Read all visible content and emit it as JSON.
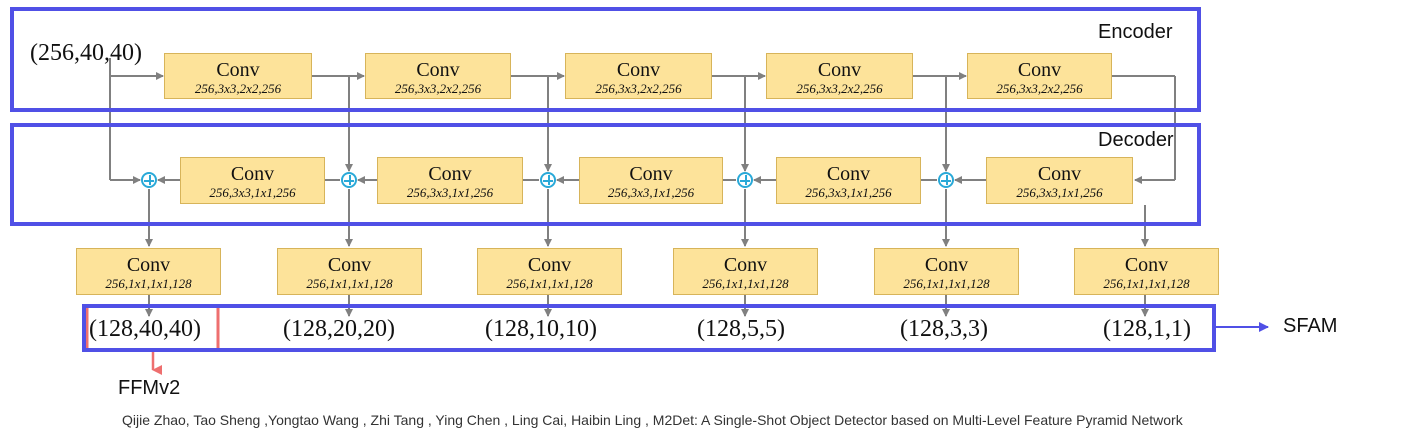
{
  "input_shape": "(256,40,40)",
  "sections": {
    "encoder": "Encoder",
    "decoder": "Decoder"
  },
  "encoder_blocks": [
    {
      "title": "Conv",
      "params": "256,3x3,2x2,256"
    },
    {
      "title": "Conv",
      "params": "256,3x3,2x2,256"
    },
    {
      "title": "Conv",
      "params": "256,3x3,2x2,256"
    },
    {
      "title": "Conv",
      "params": "256,3x3,2x2,256"
    },
    {
      "title": "Conv",
      "params": "256,3x3,2x2,256"
    }
  ],
  "decoder_blocks": [
    {
      "title": "Conv",
      "params": "256,3x3,1x1,256"
    },
    {
      "title": "Conv",
      "params": "256,3x3,1x1,256"
    },
    {
      "title": "Conv",
      "params": "256,3x3,1x1,256"
    },
    {
      "title": "Conv",
      "params": "256,3x3,1x1,256"
    },
    {
      "title": "Conv",
      "params": "256,3x3,1x1,256"
    }
  ],
  "output_blocks": [
    {
      "title": "Conv",
      "params": "256,1x1,1x1,128"
    },
    {
      "title": "Conv",
      "params": "256,1x1,1x1,128"
    },
    {
      "title": "Conv",
      "params": "256,1x1,1x1,128"
    },
    {
      "title": "Conv",
      "params": "256,1x1,1x1,128"
    },
    {
      "title": "Conv",
      "params": "256,1x1,1x1,128"
    },
    {
      "title": "Conv",
      "params": "256,1x1,1x1,128"
    }
  ],
  "output_shapes": [
    "(128,40,40)",
    "(128,20,20)",
    "(128,10,10)",
    "(128,5,5)",
    "(128,3,3)",
    "(128,1,1)"
  ],
  "targets": {
    "sfam": "SFAM",
    "ffmv2": "FFMv2"
  },
  "citation": "Qijie Zhao, Tao Sheng ,Yongtao Wang , Zhi Tang , Ying Chen , Ling Cai, Haibin Ling , M2Det: A Single-Shot Object Detector based on Multi-Level Feature Pyramid Network",
  "colors": {
    "block_fill": "#fde39a",
    "frame": "#5050e6",
    "highlight": "#ee6f6f",
    "arrow": "#808080",
    "sum_node": "#29a9d8"
  }
}
